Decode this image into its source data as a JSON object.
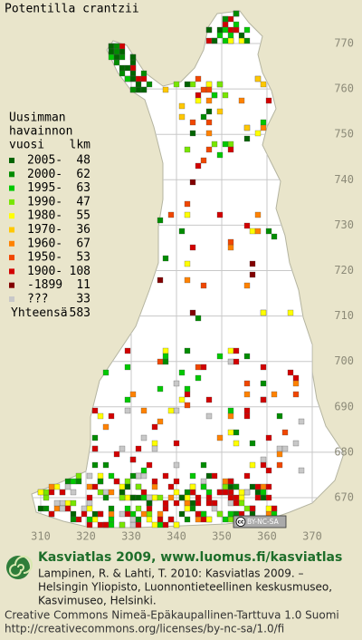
{
  "title": "Potentilla crantzii",
  "legend": {
    "heading": [
      "Uusimman",
      "havainnon",
      "vuosi"
    ],
    "count_heading": "lkm",
    "rows": [
      {
        "label": "2005-",
        "count": 48,
        "color": "#006400"
      },
      {
        "label": "2000-",
        "count": 62,
        "color": "#008c00"
      },
      {
        "label": "1995-",
        "count": 63,
        "color": "#00c800"
      },
      {
        "label": "1990-",
        "count": 47,
        "color": "#78e600"
      },
      {
        "label": "1980-",
        "count": 55,
        "color": "#ffff00"
      },
      {
        "label": "1970-",
        "count": 36,
        "color": "#ffc800"
      },
      {
        "label": "1960-",
        "count": 67,
        "color": "#ff8200"
      },
      {
        "label": "1950-",
        "count": 53,
        "color": "#f04600"
      },
      {
        "label": "1900-",
        "count": 108,
        "color": "#d20000"
      },
      {
        "label": "-1899",
        "count": 11,
        "color": "#820000"
      },
      {
        "label": "???",
        "count": 33,
        "color": "#c8c8c8"
      }
    ],
    "total_label": "Yhteensä",
    "total": 583
  },
  "map": {
    "y_labels": [
      770,
      760,
      750,
      740,
      730,
      720,
      710,
      700,
      690,
      680,
      670
    ],
    "x_labels": [
      310,
      320,
      330,
      340,
      350,
      360,
      370
    ]
  },
  "license_badge": {
    "icon": "cc",
    "text": "BY-NC-SA"
  },
  "footer": {
    "headline": "Kasviatlas 2009, www.luomus.fi/kasviatlas",
    "citation": [
      "Lampinen, R. & Lahti, T. 2010: Kasviatlas 2009. –",
      "Helsingin Yliopisto, Luonnontieteellinen keskusmuseo,",
      "Kasvimuseo, Helsinki."
    ],
    "license": "Creative Commons Nimeä-Epäkaupallinen-Tarttuva 1.0 Suomi",
    "license_url": "http://creativecommons.org/licenses/by-nc-sa/1.0/fi"
  }
}
